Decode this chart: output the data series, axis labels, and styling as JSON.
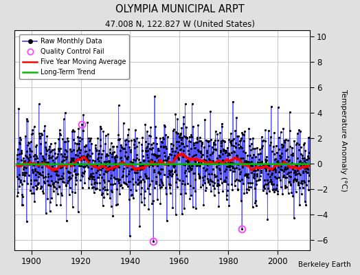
{
  "title": "OLYMPIA MUNICIPAL ARPT",
  "subtitle": "47.008 N, 122.827 W (United States)",
  "ylabel": "Temperature Anomaly (°C)",
  "credit": "Berkeley Earth",
  "xlim": [
    1893,
    2013
  ],
  "ylim": [
    -6.8,
    10.5
  ],
  "yticks": [
    -6,
    -4,
    -2,
    0,
    2,
    4,
    6,
    8,
    10
  ],
  "xticks": [
    1900,
    1920,
    1940,
    1960,
    1980,
    2000
  ],
  "bg_color": "#e0e0e0",
  "plot_bg_color": "#ffffff",
  "raw_line_color": "#3333ff",
  "raw_marker_color": "#000000",
  "qc_fail_color": "#ff44ff",
  "moving_avg_color": "#ff0000",
  "trend_color": "#00bb00",
  "grid_color": "#bbbbbb",
  "seed": 12,
  "start_year": 1894,
  "end_year": 2012,
  "n_months": 1428,
  "qc_fail_years": [
    1920.5,
    1949.5,
    1985.5
  ],
  "qc_fail_values": [
    3.1,
    -6.1,
    -5.1
  ],
  "moving_avg_window": 60
}
